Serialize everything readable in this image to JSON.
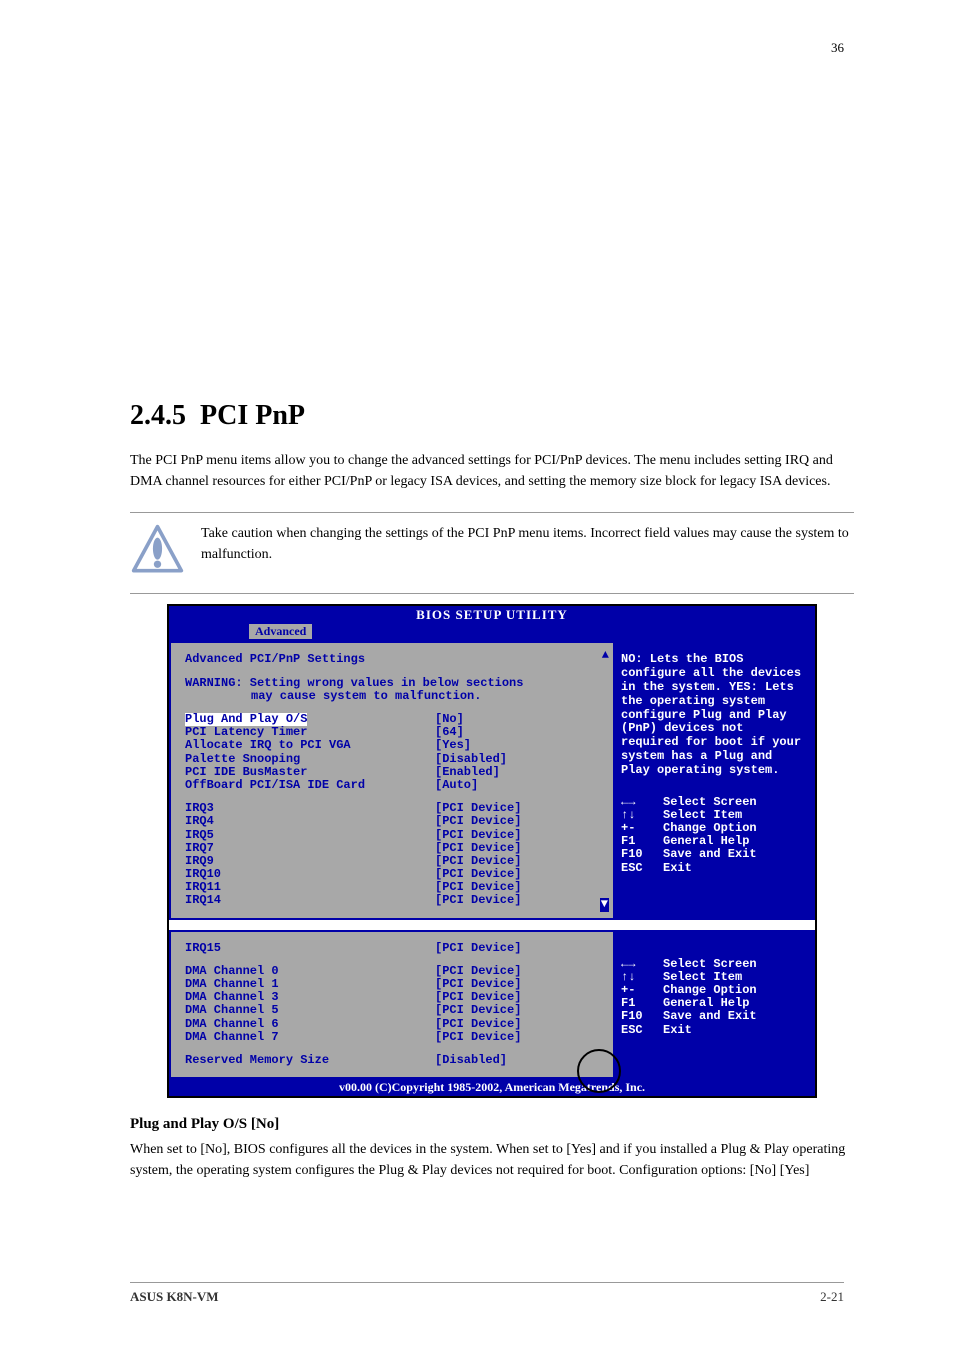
{
  "page": {
    "page_number_top": "36",
    "section_number": "2.4.5",
    "section_title": "PCI PnP",
    "intro_text": "The PCI PnP menu items allow you to change the advanced settings for PCI/PnP devices. The menu includes setting IRQ and DMA channel resources for either PCI/PnP or legacy ISA devices, and setting the memory size block for legacy ISA devices.",
    "callout_text": "Take caution when changing the settings of the PCI PnP menu items. Incorrect field values may cause the system to malfunction."
  },
  "bios": {
    "title": "BIOS SETUP UTILITY",
    "tab": "Advanced",
    "heading": "Advanced PCI/PnP Settings",
    "warning_l1": "WARNING: Setting wrong values in below sections",
    "warning_l2": "may cause system to malfunction.",
    "settings": [
      {
        "label": "Plug And Play O/S",
        "value": "[No]"
      },
      {
        "label": "PCI Latency Timer",
        "value": "[64]"
      },
      {
        "label": "Allocate IRQ to PCI VGA",
        "value": "[Yes]"
      },
      {
        "label": "Palette Snooping",
        "value": "[Disabled]"
      },
      {
        "label": "PCI IDE BusMaster",
        "value": "[Enabled]"
      },
      {
        "label": "OffBoard PCI/ISA IDE Card",
        "value": "[Auto]"
      }
    ],
    "irqs": [
      {
        "label": "IRQ3",
        "value": "[PCI Device]"
      },
      {
        "label": "IRQ4",
        "value": "[PCI Device]"
      },
      {
        "label": "IRQ5",
        "value": "[PCI Device]"
      },
      {
        "label": "IRQ7",
        "value": "[PCI Device]"
      },
      {
        "label": "IRQ9",
        "value": "[PCI Device]"
      },
      {
        "label": "IRQ10",
        "value": "[PCI Device]"
      },
      {
        "label": "IRQ11",
        "value": "[PCI Device]"
      },
      {
        "label": "IRQ14",
        "value": "[PCI Device]"
      }
    ],
    "irqs2": [
      {
        "label": "IRQ15",
        "value": "[PCI Device]"
      }
    ],
    "dmas": [
      {
        "label": "DMA Channel 0",
        "value": "[PCI Device]"
      },
      {
        "label": "DMA Channel 1",
        "value": "[PCI Device]"
      },
      {
        "label": "DMA Channel 3",
        "value": "[PCI Device]"
      },
      {
        "label": "DMA Channel 5",
        "value": "[PCI Device]"
      },
      {
        "label": "DMA Channel 6",
        "value": "[PCI Device]"
      },
      {
        "label": "DMA Channel 7",
        "value": "[PCI Device]"
      }
    ],
    "reserved": {
      "label": "Reserved Memory Size",
      "value": "[Disabled]"
    },
    "side_help": "NO: Lets the BIOS configure all the devices in the system. YES: Lets the operating system configure Plug and Play (PnP) devices not required for boot if your system has a Plug and Play operating system.",
    "help_keys": [
      {
        "key": "←→",
        "action": "Select Screen"
      },
      {
        "key": "↑↓",
        "action": "Select Item"
      },
      {
        "key": "+-",
        "action": "Change Option"
      },
      {
        "key": "F1",
        "action": "General Help"
      },
      {
        "key": "F10",
        "action": "Save and Exit"
      },
      {
        "key": "ESC",
        "action": "Exit"
      }
    ],
    "footer": "v00.00 (C)Copyright 1985-2002, American Megatrends, Inc."
  },
  "post": {
    "heading": "Plug and Play O/S [No]",
    "body": "When set to [No], BIOS configures all the devices in the system. When set to [Yes] and if you installed a Plug & Play operating system, the operating system configures the Plug & Play devices not required for boot. Configuration options: [No] [Yes]"
  },
  "footer": {
    "model": "ASUS K8N-VM",
    "right": "2-21"
  },
  "colors": {
    "bios_blue": "#0000a8",
    "bios_gray": "#a8a8a8",
    "white": "#ffffff",
    "black": "#000000"
  }
}
